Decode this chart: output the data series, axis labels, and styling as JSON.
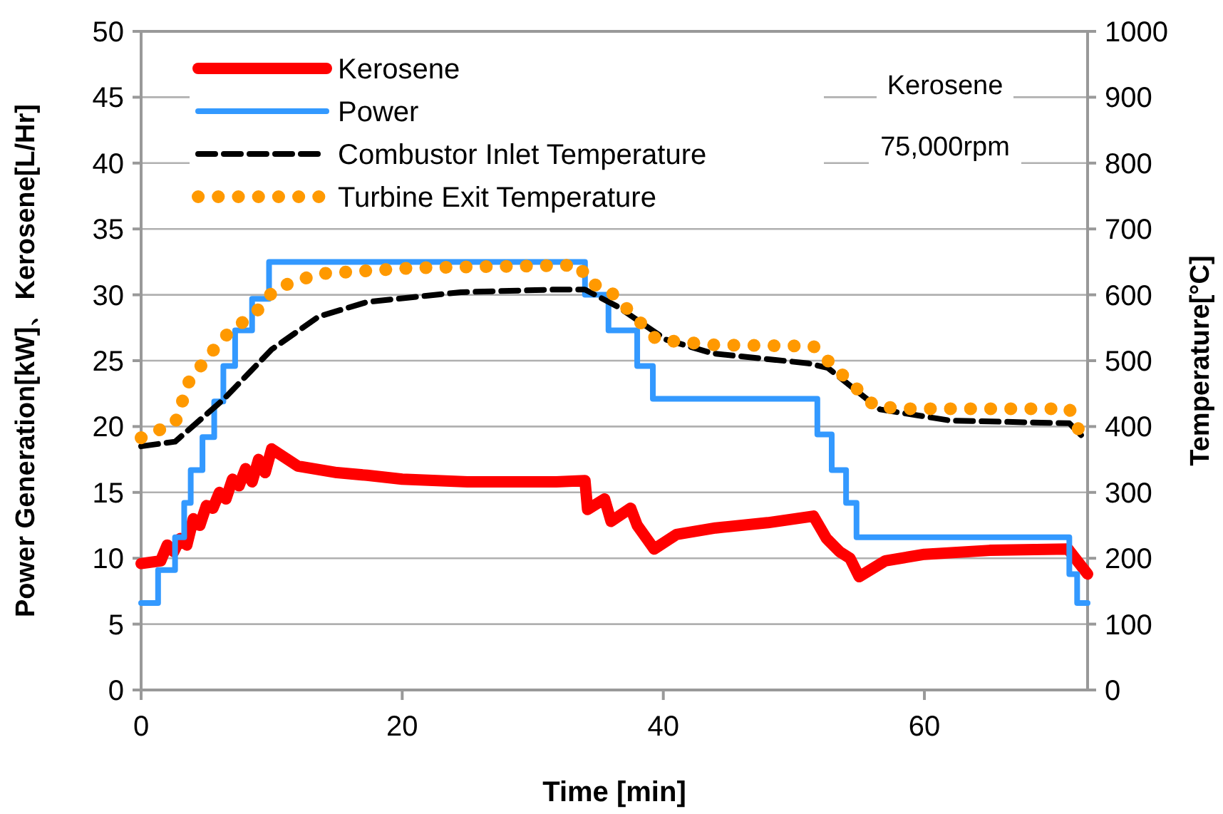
{
  "chart_data": {
    "type": "line",
    "xlabel": "Time [min]",
    "ylabel": "Power Generation[kW]、Kerosene[L/Hr]",
    "y2label": "Temperature[°C]",
    "xlim": [
      0,
      72.5
    ],
    "xticks": [
      0,
      20,
      40,
      60
    ],
    "ylim": [
      0,
      50
    ],
    "yticks": [
      0,
      5,
      10,
      15,
      20,
      25,
      30,
      35,
      40,
      45,
      50
    ],
    "y2lim": [
      0,
      1000
    ],
    "y2ticks": [
      0,
      100,
      200,
      300,
      400,
      500,
      600,
      700,
      800,
      900,
      1000
    ],
    "grid": "y",
    "legend": "top left",
    "annotations": [
      "Kerosene",
      "75,000rpm"
    ],
    "series": [
      {
        "name": "Kerosene",
        "color": "#ff0000",
        "type": "line",
        "line_style": "solid",
        "x": [
          0,
          1.5,
          2,
          2.5,
          3,
          3.5,
          4,
          4.5,
          5,
          5.5,
          6,
          6.5,
          7,
          7.5,
          8,
          8.5,
          9,
          9.5,
          10,
          12,
          15,
          17.3,
          20,
          25,
          31.8,
          34,
          34.2,
          35.5,
          36,
          37.5,
          38,
          39.3,
          41,
          44,
          48,
          51.5,
          52.5,
          53.5,
          54.3,
          55,
          57,
          60,
          65,
          71,
          72.5
        ],
        "values": [
          9.6,
          9.8,
          11,
          10.5,
          11.5,
          11,
          13,
          12.5,
          14,
          13.8,
          15,
          14.5,
          16,
          15.5,
          16.8,
          15.8,
          17.5,
          16.5,
          18.3,
          17,
          16.5,
          16.3,
          16,
          15.8,
          15.8,
          15.9,
          13.7,
          14.5,
          12.8,
          13.8,
          12.5,
          10.7,
          11.8,
          12.3,
          12.7,
          13.2,
          11.5,
          10.5,
          10,
          8.6,
          9.8,
          10.3,
          10.6,
          10.7,
          8.8
        ]
      },
      {
        "name": "Power",
        "color": "#3399ff",
        "type": "step",
        "line_style": "solid",
        "x": [
          0,
          1.3,
          2.6,
          3.3,
          3.8,
          4.7,
          5.6,
          6.3,
          7.2,
          8.5,
          9.8,
          34,
          35.8,
          38,
          39.2,
          51.8,
          52.9,
          54,
          54.8,
          71.1,
          71.7,
          72.5
        ],
        "values": [
          6.6,
          9.1,
          11.6,
          14.2,
          16.7,
          19.2,
          21.9,
          24.6,
          27.3,
          29.7,
          32.5,
          30,
          27.3,
          24.6,
          22.1,
          19.4,
          16.7,
          14.2,
          11.6,
          8.8,
          6.6,
          6.6
        ]
      },
      {
        "name": "Combustor Inlet Temperature",
        "color": "#000000",
        "type": "line",
        "line_style": "dashed",
        "axis": "y2",
        "x": [
          0,
          2.6,
          6.3,
          10,
          13.6,
          17.3,
          24.5,
          31.8,
          34,
          36.5,
          40.2,
          43.8,
          51.1,
          52.6,
          56.6,
          62,
          71.1,
          72
        ],
        "values": [
          370,
          377,
          441,
          517,
          567,
          589,
          604,
          608,
          608,
          582,
          532,
          511,
          496,
          489,
          426,
          409,
          405,
          387
        ]
      },
      {
        "name": "Turbine Exit Temperature",
        "color": "#ff9900",
        "type": "line",
        "line_style": "dotted",
        "axis": "y2",
        "x": [
          0,
          2.6,
          3.7,
          6.3,
          8.9,
          10.3,
          13.6,
          20.9,
          33.6,
          34.2,
          35.8,
          39.5,
          43.8,
          51.5,
          52.6,
          56.2,
          58.4,
          71.1,
          72
        ],
        "values": [
          383,
          405,
          470,
          535,
          576,
          610,
          632,
          641,
          645,
          619,
          608,
          532,
          524,
          522,
          500,
          431,
          427,
          427,
          387
        ]
      }
    ]
  }
}
